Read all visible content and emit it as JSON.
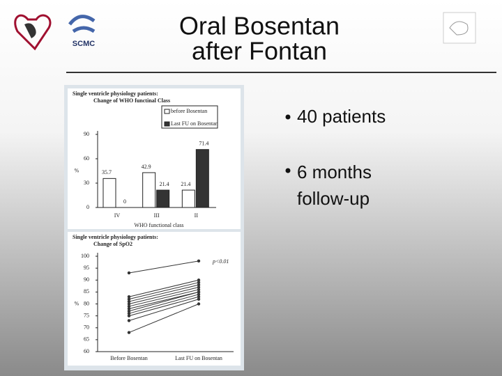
{
  "slide": {
    "title_lines": [
      "Oral Bosentan",
      "after Fontan"
    ],
    "logo_text": "SCMC",
    "bullets": [
      "40 patients",
      "6 months follow-up"
    ]
  },
  "chart_data": [
    {
      "type": "bar",
      "title_lines": [
        "Single ventricle physiology patients:",
        "Change of WHO functinal Class"
      ],
      "categories": [
        "IV",
        "III",
        "II"
      ],
      "series": [
        {
          "name": "before Bosentan",
          "color": "#ffffff",
          "values": [
            35.7,
            42.9,
            21.4
          ]
        },
        {
          "name": "Last FU on Bosentan",
          "color": "#333333",
          "values": [
            0,
            21.4,
            71.4
          ]
        }
      ],
      "ylim": [
        0,
        90
      ],
      "yticks": [
        0,
        30,
        60,
        90
      ],
      "ylabel": "%",
      "xlabel": "WHO functional class",
      "legend": "top-right"
    },
    {
      "type": "line",
      "title_lines": [
        "Single ventricle physiology patients:",
        "Change of SpO2"
      ],
      "categories": [
        "Before Bosentan",
        "Last FU on Bosentan"
      ],
      "color": "#333333",
      "series": [
        {
          "values": [
            93,
            98
          ]
        },
        {
          "values": [
            83,
            90
          ]
        },
        {
          "values": [
            82,
            89
          ]
        },
        {
          "values": [
            81,
            88
          ]
        },
        {
          "values": [
            80,
            87
          ]
        },
        {
          "values": [
            79,
            86
          ]
        },
        {
          "values": [
            78,
            85
          ]
        },
        {
          "values": [
            77,
            85
          ]
        },
        {
          "values": [
            76,
            84
          ]
        },
        {
          "values": [
            75,
            83
          ]
        },
        {
          "values": [
            73,
            82
          ]
        },
        {
          "values": [
            68,
            80
          ]
        }
      ],
      "ylim": [
        60,
        100
      ],
      "yticks": [
        60,
        65,
        70,
        75,
        80,
        85,
        90,
        95,
        100
      ],
      "ylabel": "%",
      "annotation": "p<0.01"
    }
  ]
}
